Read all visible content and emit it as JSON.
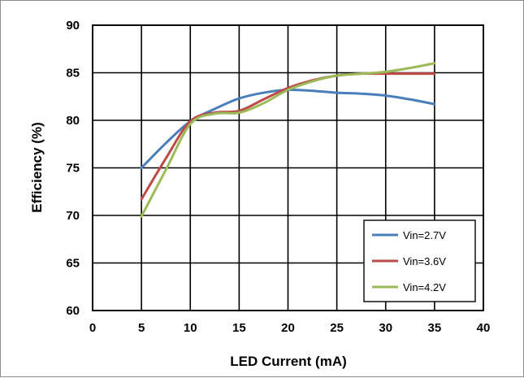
{
  "chart_data": {
    "type": "line",
    "title": "",
    "xlabel": "LED Current (mA)",
    "ylabel": "Efficiency (%)",
    "xlim": [
      0,
      40
    ],
    "ylim": [
      60,
      90
    ],
    "x_ticks": [
      0,
      5,
      10,
      15,
      20,
      25,
      30,
      35,
      40
    ],
    "y_ticks": [
      60,
      65,
      70,
      75,
      80,
      85,
      90
    ],
    "grid": true,
    "legend_position": "bottom-right",
    "series": [
      {
        "name": "Vin=2.7V",
        "color": "#4a7ebb",
        "x": [
          5,
          7.5,
          10,
          12.5,
          15,
          17.5,
          20,
          22.5,
          25,
          27.5,
          30,
          32.5,
          35
        ],
        "y": [
          75.0,
          77.6,
          79.9,
          81.2,
          82.3,
          82.9,
          83.2,
          83.1,
          82.9,
          82.8,
          82.6,
          82.2,
          81.7
        ]
      },
      {
        "name": "Vin=3.6V",
        "color": "#be4b48",
        "x": [
          5,
          7.5,
          10,
          12.5,
          15,
          17.5,
          20,
          22.5,
          25,
          27.5,
          30,
          32.5,
          35
        ],
        "y": [
          71.7,
          76.0,
          79.9,
          80.8,
          81.0,
          82.2,
          83.4,
          84.2,
          84.7,
          84.9,
          84.9,
          84.9,
          84.9
        ]
      },
      {
        "name": "Vin=4.2V",
        "color": "#9bbb59",
        "x": [
          5,
          7.5,
          10,
          12.5,
          15,
          17.5,
          20,
          22.5,
          25,
          27.5,
          30,
          32.5,
          35
        ],
        "y": [
          69.9,
          74.8,
          79.6,
          80.7,
          80.8,
          81.8,
          83.2,
          84.1,
          84.7,
          84.9,
          85.1,
          85.5,
          86.0
        ]
      }
    ]
  }
}
